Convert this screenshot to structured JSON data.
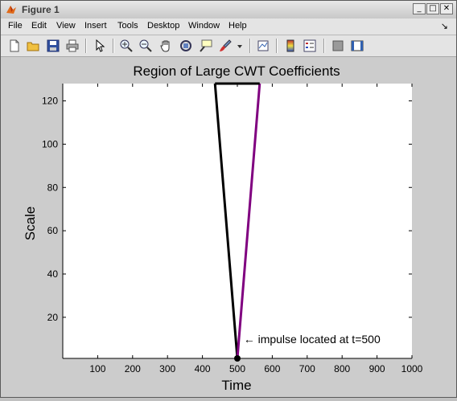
{
  "window": {
    "title": "Figure 1",
    "controls": {
      "minimize": "_",
      "maximize": "□",
      "close": "✕"
    }
  },
  "menu": {
    "items": [
      "File",
      "Edit",
      "View",
      "Insert",
      "Tools",
      "Desktop",
      "Window",
      "Help"
    ],
    "dock_arrow": "↘"
  },
  "toolbar": {
    "buttons": [
      "new-figure",
      "open-file",
      "save",
      "print",
      "edit-plot-arrow",
      "zoom-in",
      "zoom-out",
      "pan-hand",
      "rotate-3d",
      "data-cursor",
      "brush",
      "brush-dropdown",
      "link-plot",
      "insert-colorbar",
      "insert-legend",
      "hide-plot-tools",
      "show-plot-tools"
    ]
  },
  "chart_data": {
    "type": "line",
    "title": "Region of Large CWT Coefficients",
    "xlabel": "Time",
    "ylabel": "Scale",
    "xlim": [
      0,
      1000
    ],
    "ylim": [
      1,
      128
    ],
    "xticks": [
      100,
      200,
      300,
      400,
      500,
      600,
      700,
      800,
      900,
      1000
    ],
    "yticks": [
      20,
      40,
      60,
      80,
      100,
      120
    ],
    "grid": false,
    "series": [
      {
        "x": [
          500,
          436
        ],
        "y": [
          1,
          128
        ],
        "color": "#000000"
      },
      {
        "x": [
          500,
          564
        ],
        "y": [
          1,
          128
        ],
        "color": "#800080"
      },
      {
        "x": [
          436,
          564
        ],
        "y": [
          128,
          128
        ],
        "color": "#000000"
      }
    ],
    "impulse": {
      "x": 500,
      "y": 1
    },
    "annotation": {
      "text": "← impulse located at t=500",
      "x": 550,
      "y": 10
    }
  }
}
